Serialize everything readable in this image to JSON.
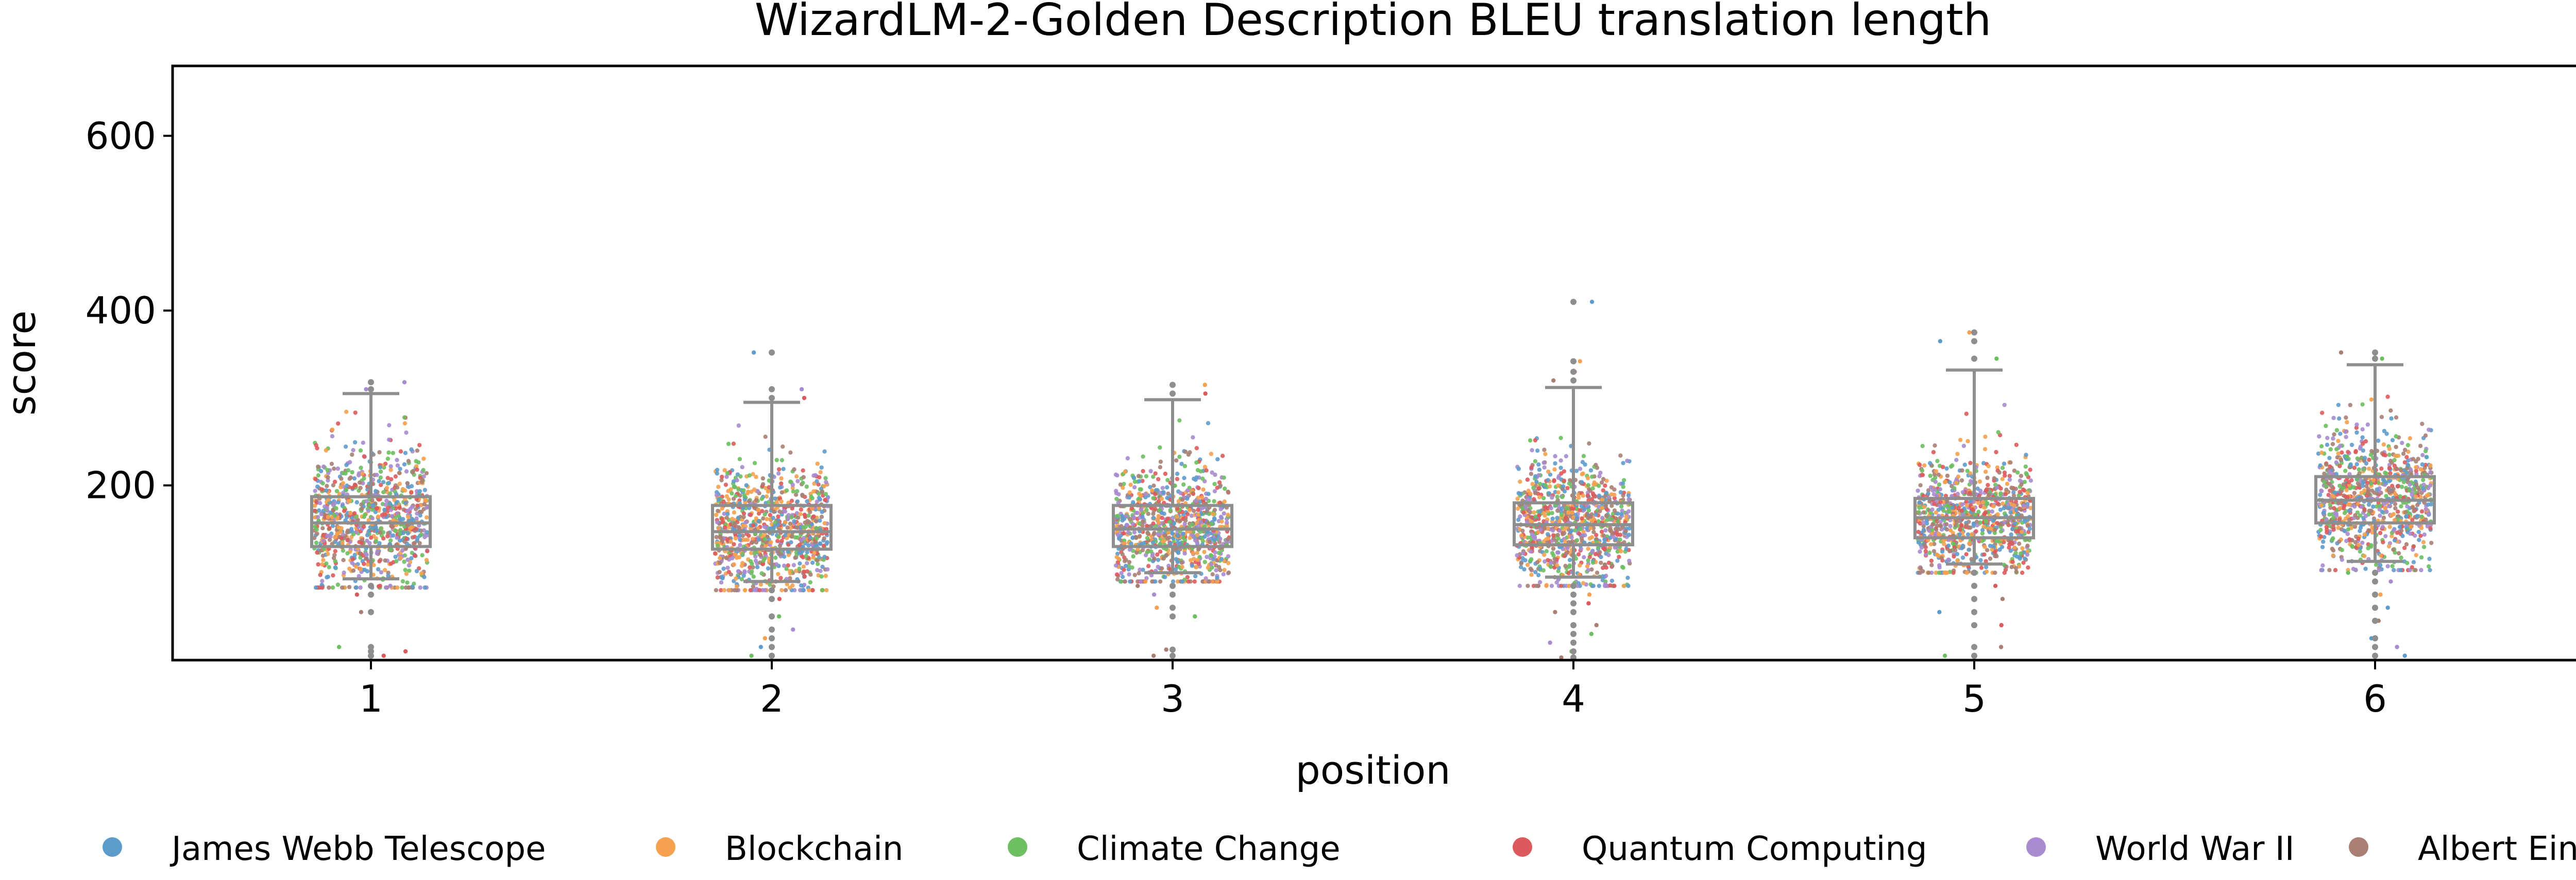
{
  "chart_data": {
    "type": "scatter",
    "subtype": "strip plot with box plot",
    "title": "WizardLM-2-Golden Description BLEU translation length",
    "xlabel": "position",
    "ylabel": "score",
    "categories": [
      "1",
      "2",
      "3",
      "4",
      "5",
      "6"
    ],
    "ylim": [
      0,
      680
    ],
    "yticks": [
      200,
      400,
      600
    ],
    "grid": false,
    "legend": {
      "placement": "bottom",
      "entries": [
        {
          "name": "James Webb Telescope",
          "color": "#5e9ccc"
        },
        {
          "name": "Blockchain",
          "color": "#f5a14f"
        },
        {
          "name": "Climate Change",
          "color": "#6dbf62"
        },
        {
          "name": "Quantum Computing",
          "color": "#dd5a5c"
        },
        {
          "name": "World War II",
          "color": "#a98bcf"
        },
        {
          "name": "Albert Einstein",
          "color": "#a97f74"
        }
      ]
    },
    "box_color": "#8e8e8e",
    "boxes": [
      {
        "position": "1",
        "whisker_low": 93,
        "q1": 130,
        "median": 157,
        "q3": 187,
        "whisker_high": 305,
        "outliers": [
          5,
          10,
          15,
          55,
          75,
          85,
          310,
          318
        ]
      },
      {
        "position": "2",
        "whisker_low": 90,
        "q1": 127,
        "median": 147,
        "q3": 177,
        "whisker_high": 295,
        "outliers": [
          5,
          15,
          25,
          35,
          50,
          70,
          80,
          300,
          310,
          352
        ]
      },
      {
        "position": "3",
        "whisker_low": 100,
        "q1": 130,
        "median": 150,
        "q3": 177,
        "whisker_high": 298,
        "outliers": [
          5,
          12,
          50,
          60,
          75,
          85,
          305,
          315
        ]
      },
      {
        "position": "4",
        "whisker_low": 95,
        "q1": 132,
        "median": 155,
        "q3": 180,
        "whisker_high": 312,
        "outliers": [
          3,
          10,
          20,
          30,
          40,
          55,
          65,
          75,
          85,
          320,
          330,
          342,
          410
        ]
      },
      {
        "position": "5",
        "whisker_low": 110,
        "q1": 140,
        "median": 163,
        "q3": 185,
        "whisker_high": 332,
        "outliers": [
          5,
          15,
          40,
          55,
          70,
          85,
          100,
          345,
          365,
          375
        ]
      },
      {
        "position": "6",
        "whisker_low": 113,
        "q1": 157,
        "median": 183,
        "q3": 210,
        "whisker_high": 338,
        "outliers": [
          5,
          15,
          25,
          45,
          60,
          75,
          90,
          100,
          345,
          352
        ]
      }
    ]
  }
}
